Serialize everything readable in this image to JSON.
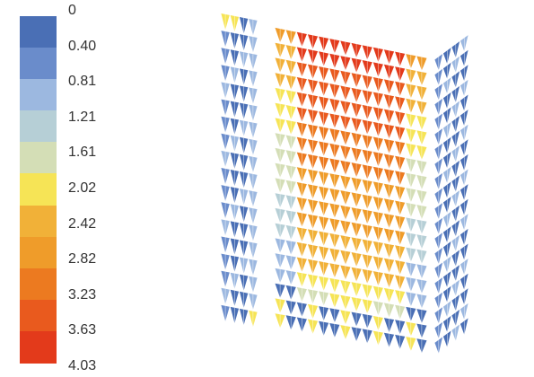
{
  "colorbar": {
    "labels": [
      "0",
      "0.40",
      "0.81",
      "1.21",
      "1.61",
      "2.02",
      "2.42",
      "2.82",
      "3.23",
      "3.63",
      "4.03"
    ],
    "colors": [
      "#4a6fb5",
      "#6a8ccb",
      "#9cb8e0",
      "#b6cfd6",
      "#d4deb6",
      "#f6e456",
      "#f1b138",
      "#ef9c2a",
      "#ec7a20",
      "#e95a1e",
      "#e33a1b"
    ]
  }
}
